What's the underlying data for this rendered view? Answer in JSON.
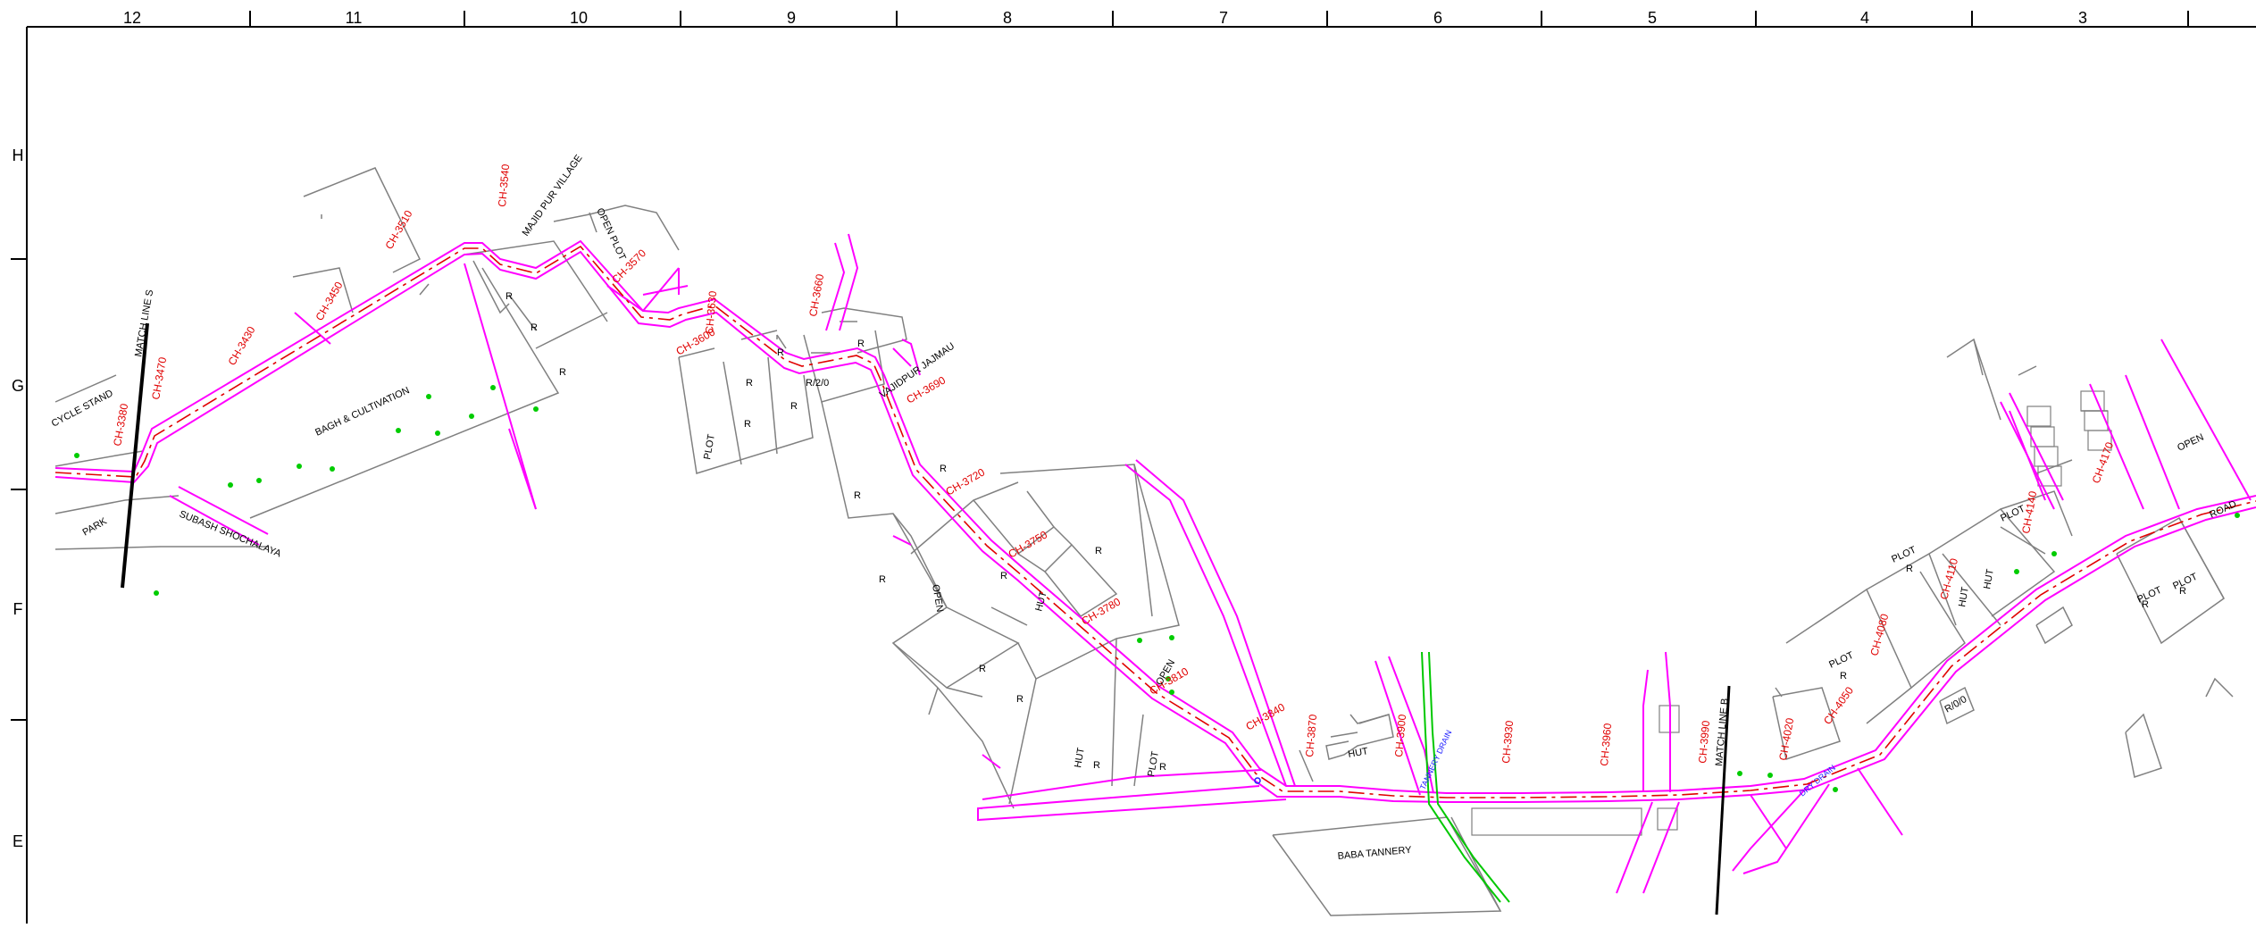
{
  "grid": {
    "columns": [
      "12",
      "11",
      "10",
      "9",
      "8",
      "7",
      "6",
      "5",
      "4",
      "3"
    ],
    "rows": [
      "H",
      "G",
      "F",
      "E"
    ]
  },
  "chainages": [
    "CH-3380",
    "CH-3470",
    "CH-3430",
    "CH-3450",
    "CH-3510",
    "CH-3540",
    "CH-3570",
    "CH-3600",
    "CH-3630",
    "CH-3660",
    "CH-3690",
    "CH-3720",
    "CH-3750",
    "CH-3780",
    "CH-3810",
    "CH-3840",
    "CH-3870",
    "CH-3900",
    "CH-3930",
    "CH-3960",
    "CH-3990",
    "CH-4020",
    "CH-4050",
    "CH-4080",
    "CH-4110",
    "CH-4140",
    "CH-4170"
  ],
  "labels": {
    "cycle_stand": "CYCLE STAND",
    "match_line_s": "MATCH LINE S",
    "match_line_b": "MATCH LINE B",
    "park": "PARK",
    "subash": "SUBASH SHOCHALAYA",
    "bagh": "BAGH & CULTIVATION",
    "majid_pur": "MAJID PUR VILLAGE",
    "open_plot": "OPEN PLOT",
    "vajidpur": "VAJIDPUR JAJMAU",
    "r20": "R/2/0",
    "r00": "R/0/0",
    "plot": "PLOT",
    "hut": "HUT",
    "open": "OPEN",
    "road": "ROAD",
    "baba_tannery": "BABA TANNERY",
    "r": "R",
    "tannery_drain": "TANNERY DRAIN",
    "dry_drain": "DRY DRAIN"
  },
  "colors": {
    "road": "#ff00ff",
    "centerline": "#e00000",
    "boundary": "#808080",
    "drain": "#00c800",
    "tree": "#00cc00",
    "text": "#000000"
  }
}
